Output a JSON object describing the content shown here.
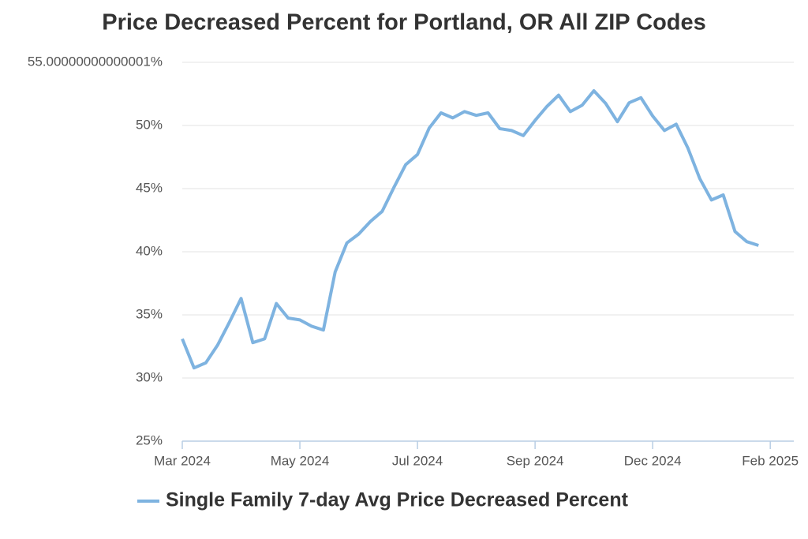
{
  "chart_data": {
    "type": "line",
    "title": "Price Decreased Percent for Portland, OR All ZIP Codes",
    "x": [
      0,
      1,
      2,
      3,
      4,
      5,
      6,
      7,
      8,
      9,
      10,
      11,
      12,
      13,
      14,
      15,
      16,
      17,
      18,
      19,
      20,
      21,
      22,
      23,
      24,
      25,
      26,
      27,
      28,
      29,
      30,
      31,
      32,
      33,
      34,
      35,
      36,
      37,
      38,
      39,
      40,
      41,
      42,
      43,
      44,
      45,
      46,
      47,
      48,
      49
    ],
    "series": [
      {
        "name": "Single Family 7-day Avg Price Decreased Percent",
        "color": "#7eb3e0",
        "values": [
          33.1,
          30.8,
          31.2,
          32.6,
          34.4,
          36.3,
          32.8,
          33.1,
          35.9,
          34.75,
          34.6,
          34.1,
          33.8,
          38.4,
          40.7,
          41.4,
          42.4,
          43.2,
          45.1,
          46.9,
          47.7,
          49.8,
          51.0,
          50.6,
          51.1,
          50.8,
          51.0,
          49.75,
          49.6,
          49.2,
          50.4,
          51.5,
          52.4,
          51.1,
          51.6,
          52.75,
          51.75,
          50.3,
          51.8,
          52.2,
          50.75,
          49.6,
          50.1,
          48.2,
          45.8,
          44.1,
          44.5,
          41.6,
          40.8,
          40.5
        ]
      }
    ],
    "xlim": [
      0,
      52
    ],
    "xticks": [
      {
        "value": 0,
        "label": "Mar 2024"
      },
      {
        "value": 10,
        "label": "May 2024"
      },
      {
        "value": 20,
        "label": "Jul 2024"
      },
      {
        "value": 30,
        "label": "Sep 2024"
      },
      {
        "value": 40,
        "label": "Dec 2024"
      },
      {
        "value": 50,
        "label": "Feb 2025"
      }
    ],
    "ylim": [
      25,
      55
    ],
    "yticks": [
      {
        "value": 25,
        "label": "25%"
      },
      {
        "value": 30,
        "label": "30%"
      },
      {
        "value": 35,
        "label": "35%"
      },
      {
        "value": 40,
        "label": "40%"
      },
      {
        "value": 45,
        "label": "45%"
      },
      {
        "value": 50,
        "label": "50%"
      },
      {
        "value": 55,
        "label": "55.00000000000001%"
      }
    ],
    "grid": true,
    "legend": "bottom"
  }
}
